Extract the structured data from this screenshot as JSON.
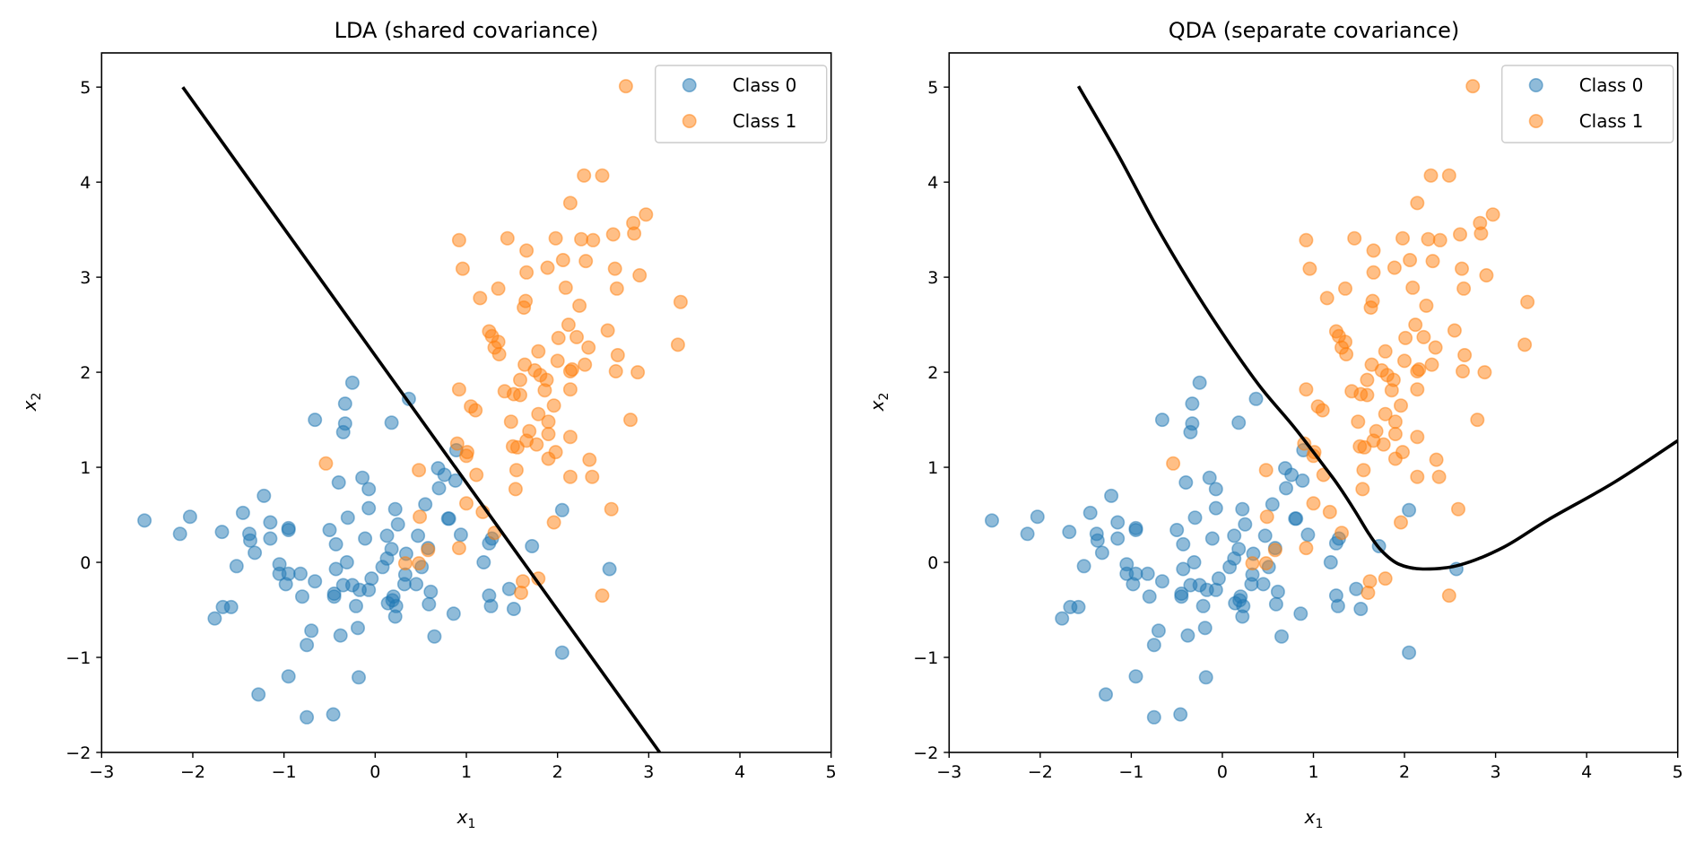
{
  "chart_data": [
    {
      "type": "scatter",
      "title": "LDA (shared covariance)",
      "xlabel": "x",
      "xlabel_sub": "1",
      "ylabel": "x",
      "ylabel_sub": "2",
      "xlim": [
        -3,
        5
      ],
      "ylim": [
        -2,
        5.36
      ],
      "xticks": [
        "−3",
        "−2",
        "−1",
        "0",
        "1",
        "2",
        "3",
        "4",
        "5"
      ],
      "xtick_values": [
        -3,
        -2,
        -1,
        0,
        1,
        2,
        3,
        4,
        5
      ],
      "yticks": [
        "−2",
        "−1",
        "0",
        "1",
        "2",
        "3",
        "4",
        "5"
      ],
      "ytick_values": [
        -2,
        -1,
        0,
        1,
        2,
        3,
        4,
        5
      ],
      "grid": false,
      "legend": {
        "placement": "top-right",
        "entries": [
          "Class 0",
          "Class 1"
        ]
      },
      "boundary": {
        "name": "LDA decision boundary",
        "kind": "line",
        "points": [
          [
            -2.11,
            5.0
          ],
          [
            3.12,
            -2.0
          ]
        ]
      },
      "series_ref": "shared"
    },
    {
      "type": "scatter",
      "title": "QDA (separate covariance)",
      "xlabel": "x",
      "xlabel_sub": "1",
      "ylabel": "x",
      "ylabel_sub": "2",
      "xlim": [
        -3,
        5
      ],
      "ylim": [
        -2,
        5.36
      ],
      "xticks": [
        "−3",
        "−2",
        "−1",
        "0",
        "1",
        "2",
        "3",
        "4",
        "5"
      ],
      "xtick_values": [
        -3,
        -2,
        -1,
        0,
        1,
        2,
        3,
        4,
        5
      ],
      "yticks": [
        "−2",
        "−1",
        "0",
        "1",
        "2",
        "3",
        "4",
        "5"
      ],
      "ytick_values": [
        -2,
        -1,
        0,
        1,
        2,
        3,
        4,
        5
      ],
      "grid": false,
      "legend": {
        "placement": "top-right",
        "entries": [
          "Class 0",
          "Class 1"
        ]
      },
      "boundary": {
        "name": "QDA decision boundary",
        "kind": "curve",
        "points": [
          [
            -1.58,
            5.01
          ],
          [
            -1.14,
            4.28
          ],
          [
            -0.72,
            3.53
          ],
          [
            -0.29,
            2.84
          ],
          [
            0.1,
            2.27
          ],
          [
            0.43,
            1.83
          ],
          [
            0.79,
            1.42
          ],
          [
            1.15,
            0.97
          ],
          [
            1.28,
            0.8
          ],
          [
            1.45,
            0.55
          ],
          [
            1.61,
            0.3
          ],
          [
            1.75,
            0.12
          ],
          [
            1.94,
            -0.02
          ],
          [
            2.2,
            -0.07
          ],
          [
            2.6,
            -0.03
          ],
          [
            3.09,
            0.16
          ],
          [
            3.58,
            0.45
          ],
          [
            4.3,
            0.84
          ],
          [
            5.0,
            1.28
          ]
        ]
      },
      "series_ref": "shared"
    }
  ],
  "series": [
    {
      "name": "Class 0",
      "color": "#1f77b4",
      "points": [
        [
          -2.53,
          0.44
        ],
        [
          -2.14,
          0.3
        ],
        [
          -2.03,
          0.48
        ],
        [
          -1.68,
          0.32
        ],
        [
          -1.45,
          0.52
        ],
        [
          -1.22,
          0.7
        ],
        [
          -1.38,
          0.3
        ],
        [
          -1.37,
          0.23
        ],
        [
          -1.32,
          0.1
        ],
        [
          -1.15,
          0.42
        ],
        [
          -1.15,
          0.25
        ],
        [
          -0.95,
          0.34
        ],
        [
          -0.95,
          0.36
        ],
        [
          -1.52,
          -0.04
        ],
        [
          -1.05,
          -0.02
        ],
        [
          -1.05,
          -0.12
        ],
        [
          -0.95,
          -0.12
        ],
        [
          -0.98,
          -0.23
        ],
        [
          -0.82,
          -0.12
        ],
        [
          -0.66,
          -0.2
        ],
        [
          -0.8,
          -0.36
        ],
        [
          -1.76,
          -0.59
        ],
        [
          -1.67,
          -0.47
        ],
        [
          -1.58,
          -0.47
        ],
        [
          -0.4,
          0.84
        ],
        [
          -0.66,
          1.5
        ],
        [
          -0.25,
          1.89
        ],
        [
          -0.33,
          1.67
        ],
        [
          -0.33,
          1.46
        ],
        [
          -0.35,
          1.37
        ],
        [
          0.18,
          1.47
        ],
        [
          0.37,
          1.72
        ],
        [
          -0.14,
          0.89
        ],
        [
          -0.07,
          0.77
        ],
        [
          -0.07,
          0.57
        ],
        [
          -0.3,
          0.47
        ],
        [
          -0.5,
          0.34
        ],
        [
          -0.43,
          0.19
        ],
        [
          -0.11,
          0.25
        ],
        [
          0.22,
          0.56
        ],
        [
          0.25,
          0.4
        ],
        [
          0.13,
          0.28
        ],
        [
          0.18,
          0.14
        ],
        [
          0.13,
          0.04
        ],
        [
          0.08,
          -0.05
        ],
        [
          0.47,
          0.28
        ],
        [
          0.55,
          0.61
        ],
        [
          0.69,
          0.99
        ],
        [
          0.76,
          0.92
        ],
        [
          0.7,
          0.78
        ],
        [
          0.89,
          1.18
        ],
        [
          0.8,
          0.46
        ],
        [
          0.94,
          0.29
        ],
        [
          0.34,
          0.09
        ],
        [
          0.33,
          -0.13
        ],
        [
          0.32,
          -0.23
        ],
        [
          0.45,
          -0.23
        ],
        [
          0.51,
          -0.05
        ],
        [
          0.61,
          -0.31
        ],
        [
          0.59,
          -0.44
        ],
        [
          0.86,
          -0.54
        ],
        [
          0.65,
          -0.78
        ],
        [
          -0.43,
          -0.07
        ],
        [
          -0.31,
          0.0
        ],
        [
          -0.04,
          -0.17
        ],
        [
          -0.07,
          -0.29
        ],
        [
          -0.17,
          -0.29
        ],
        [
          -0.25,
          -0.24
        ],
        [
          -0.35,
          -0.24
        ],
        [
          -0.45,
          -0.33
        ],
        [
          -0.45,
          -0.36
        ],
        [
          -0.21,
          -0.46
        ],
        [
          -0.19,
          -0.69
        ],
        [
          -0.38,
          -0.77
        ],
        [
          -0.7,
          -0.72
        ],
        [
          -0.75,
          -0.87
        ],
        [
          -0.95,
          -1.2
        ],
        [
          -0.18,
          -1.21
        ],
        [
          -1.28,
          -1.39
        ],
        [
          -0.75,
          -1.63
        ],
        [
          -0.46,
          -1.6
        ],
        [
          0.2,
          -0.36
        ],
        [
          0.14,
          -0.43
        ],
        [
          0.23,
          -0.46
        ],
        [
          0.22,
          -0.57
        ],
        [
          0.19,
          -0.4
        ],
        [
          0.88,
          0.86
        ],
        [
          0.81,
          0.46
        ],
        [
          2.05,
          0.55
        ],
        [
          1.72,
          0.17
        ],
        [
          2.57,
          -0.07
        ],
        [
          1.19,
          0.0
        ],
        [
          1.25,
          0.2
        ],
        [
          1.28,
          0.25
        ],
        [
          1.47,
          -0.28
        ],
        [
          1.25,
          -0.35
        ],
        [
          1.27,
          -0.46
        ],
        [
          1.52,
          -0.49
        ],
        [
          2.05,
          -0.95
        ],
        [
          0.58,
          0.15
        ]
      ]
    },
    {
      "name": "Class 1",
      "color": "#ff7f0e",
      "points": [
        [
          -0.54,
          1.04
        ],
        [
          0.48,
          0.97
        ],
        [
          0.49,
          0.48
        ],
        [
          0.58,
          0.13
        ],
        [
          0.33,
          -0.01
        ],
        [
          0.48,
          -0.01
        ],
        [
          0.92,
          1.82
        ],
        [
          0.9,
          1.25
        ],
        [
          0.92,
          0.15
        ],
        [
          1.05,
          1.64
        ],
        [
          1.1,
          1.6
        ],
        [
          1.01,
          1.16
        ],
        [
          1.0,
          1.12
        ],
        [
          1.11,
          0.92
        ],
        [
          1.0,
          0.62
        ],
        [
          1.18,
          0.53
        ],
        [
          1.31,
          0.31
        ],
        [
          1.96,
          0.42
        ],
        [
          2.59,
          0.56
        ],
        [
          1.79,
          -0.17
        ],
        [
          1.62,
          -0.2
        ],
        [
          1.6,
          -0.32
        ],
        [
          2.49,
          -0.35
        ],
        [
          1.55,
          0.97
        ],
        [
          1.54,
          0.77
        ],
        [
          2.14,
          0.9
        ],
        [
          2.38,
          0.9
        ],
        [
          2.35,
          1.08
        ],
        [
          1.9,
          1.09
        ],
        [
          1.98,
          1.16
        ],
        [
          1.51,
          1.22
        ],
        [
          1.56,
          1.21
        ],
        [
          1.66,
          1.28
        ],
        [
          1.69,
          1.38
        ],
        [
          1.77,
          1.24
        ],
        [
          1.9,
          1.35
        ],
        [
          2.14,
          1.32
        ],
        [
          1.9,
          1.48
        ],
        [
          1.79,
          1.56
        ],
        [
          1.49,
          1.48
        ],
        [
          1.96,
          1.65
        ],
        [
          1.86,
          1.81
        ],
        [
          2.14,
          1.82
        ],
        [
          1.42,
          1.8
        ],
        [
          1.52,
          1.77
        ],
        [
          1.59,
          1.76
        ],
        [
          2.8,
          1.5
        ],
        [
          1.59,
          1.92
        ],
        [
          1.64,
          2.08
        ],
        [
          1.75,
          2.02
        ],
        [
          1.81,
          1.97
        ],
        [
          1.88,
          1.92
        ],
        [
          1.79,
          2.22
        ],
        [
          2.0,
          2.12
        ],
        [
          2.14,
          2.01
        ],
        [
          2.16,
          2.03
        ],
        [
          2.3,
          2.08
        ],
        [
          2.34,
          2.26
        ],
        [
          2.66,
          2.18
        ],
        [
          2.64,
          2.01
        ],
        [
          2.88,
          2.0
        ],
        [
          3.32,
          2.29
        ],
        [
          1.31,
          2.26
        ],
        [
          1.36,
          2.19
        ],
        [
          2.75,
          5.01
        ],
        [
          2.29,
          4.07
        ],
        [
          2.49,
          4.07
        ],
        [
          2.14,
          3.78
        ],
        [
          2.97,
          3.66
        ],
        [
          2.83,
          3.57
        ],
        [
          2.84,
          3.46
        ],
        [
          2.61,
          3.45
        ],
        [
          2.39,
          3.39
        ],
        [
          2.26,
          3.4
        ],
        [
          1.98,
          3.41
        ],
        [
          1.45,
          3.41
        ],
        [
          0.92,
          3.39
        ],
        [
          1.66,
          3.28
        ],
        [
          0.96,
          3.09
        ],
        [
          1.66,
          3.05
        ],
        [
          1.89,
          3.1
        ],
        [
          2.06,
          3.18
        ],
        [
          2.31,
          3.17
        ],
        [
          2.63,
          3.09
        ],
        [
          2.9,
          3.02
        ],
        [
          1.35,
          2.88
        ],
        [
          1.15,
          2.78
        ],
        [
          2.09,
          2.89
        ],
        [
          2.65,
          2.88
        ],
        [
          1.65,
          2.75
        ],
        [
          1.63,
          2.68
        ],
        [
          2.24,
          2.7
        ],
        [
          3.35,
          2.74
        ],
        [
          2.12,
          2.5
        ],
        [
          2.55,
          2.44
        ],
        [
          2.01,
          2.36
        ],
        [
          2.21,
          2.37
        ],
        [
          1.25,
          2.43
        ],
        [
          1.28,
          2.38
        ],
        [
          1.35,
          2.32
        ]
      ]
    }
  ]
}
